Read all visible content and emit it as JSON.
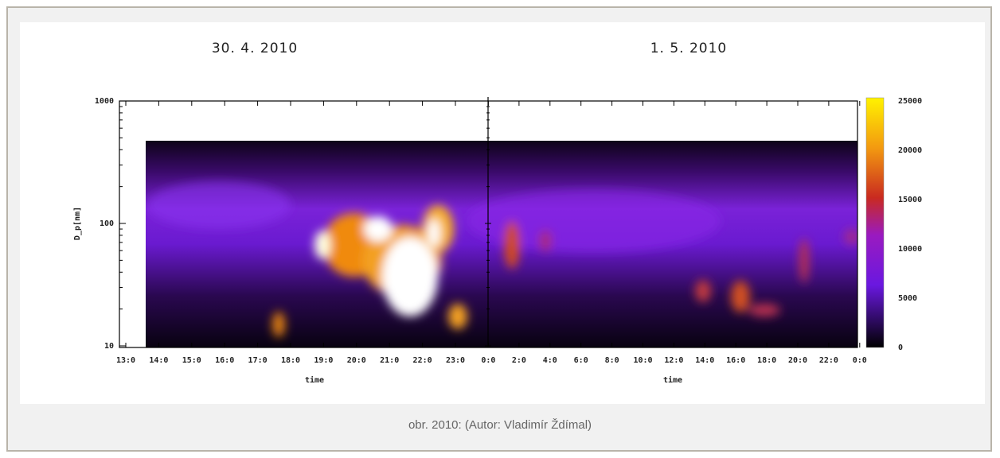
{
  "figure": {
    "titles": [
      "30. 4. 2010",
      "1. 5. 2010"
    ],
    "y_axis": {
      "label": "D_p[nm]",
      "ticks": [
        "1000",
        "100",
        "10"
      ]
    },
    "x_axis": {
      "label": "time",
      "ticks_left": [
        "13:0",
        "14:0",
        "15:0",
        "16:0",
        "17:0",
        "18:0",
        "19:0",
        "20:0",
        "21:0",
        "22:0",
        "23:0",
        "0:0"
      ],
      "ticks_right": [
        "2:0",
        "4:0",
        "6:0",
        "8:0",
        "10:0",
        "12:0",
        "14:0",
        "16:0",
        "18:0",
        "20:0",
        "22:0",
        "0:0"
      ]
    },
    "colorbar": {
      "ticks": [
        "25000",
        "20000",
        "15000",
        "10000",
        "5000",
        "0"
      ]
    }
  },
  "caption": "obr. 2010: (Autor: Vladimír Ždímal)"
}
